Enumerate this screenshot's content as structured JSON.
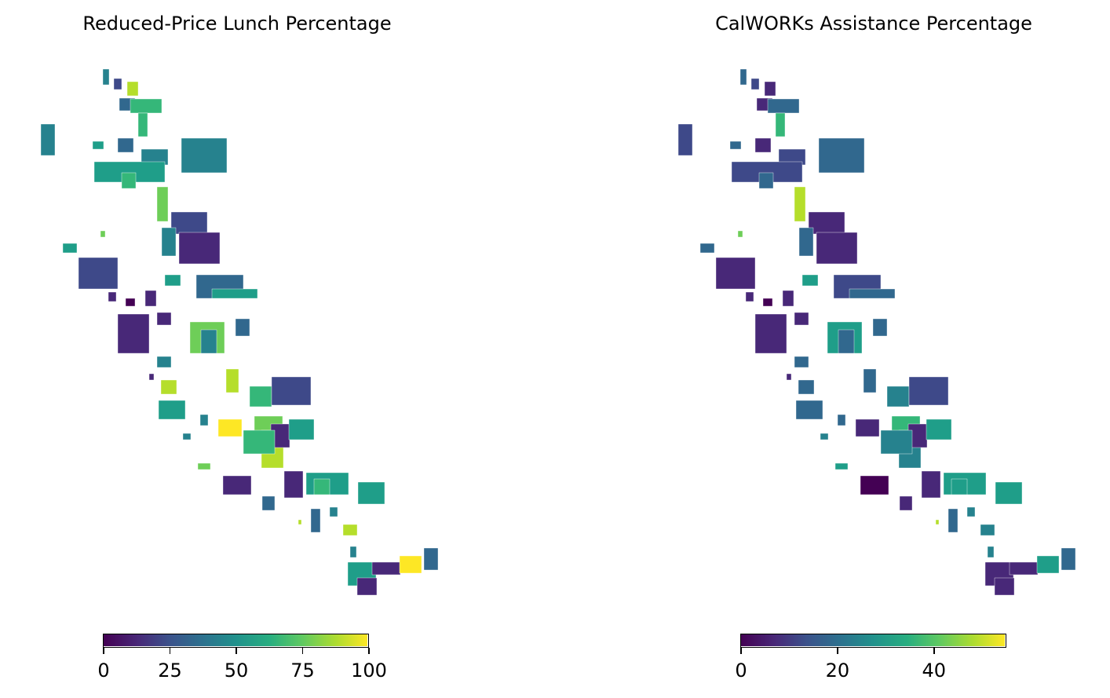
{
  "maps": [
    {
      "title": "Reduced-Price Lunch Percentage",
      "colorbar": {
        "colormap": "viridis",
        "min": 0,
        "max": 100,
        "ticks": [
          "0",
          "25",
          "50",
          "75",
          "100"
        ]
      }
    },
    {
      "title": "CalWORKs Assistance Percentage",
      "colorbar": {
        "colormap": "viridis",
        "min": 0,
        "max": 55,
        "ticks": [
          "0",
          "20",
          "40"
        ]
      }
    }
  ],
  "colors": {
    "viridis_0": "#440154",
    "viridis_25": "#3b528b",
    "viridis_50": "#21918c",
    "viridis_75": "#5ec962",
    "viridis_100": "#fde725"
  }
}
